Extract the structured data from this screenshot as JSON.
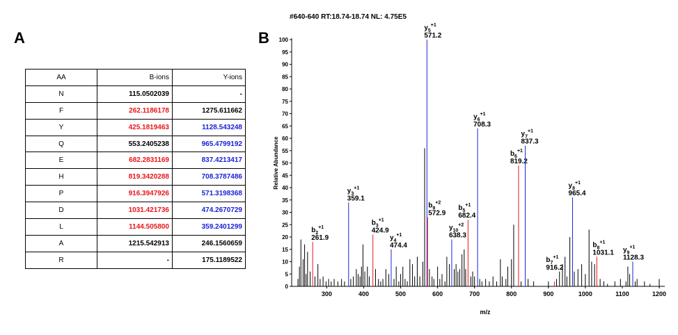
{
  "header": "#640-640 RT:18.74-18.74 NL: 4.75E5",
  "panel_a": {
    "letter": "A",
    "columns": [
      "AA",
      "B-ions",
      "Y-ions"
    ],
    "rows": [
      {
        "aa": "N",
        "b": "115.0502039",
        "y": "-",
        "b_color": "black",
        "y_color": "black"
      },
      {
        "aa": "F",
        "b": "262.1186178",
        "y": "1275.611662",
        "b_color": "red",
        "y_color": "black"
      },
      {
        "aa": "Y",
        "b": "425.1819463",
        "y": "1128.543248",
        "b_color": "red",
        "y_color": "blue"
      },
      {
        "aa": "Q",
        "b": "553.2405238",
        "y": "965.4799192",
        "b_color": "black",
        "y_color": "blue"
      },
      {
        "aa": "E",
        "b": "682.2831169",
        "y": "837.4213417",
        "b_color": "red",
        "y_color": "blue"
      },
      {
        "aa": "H",
        "b": "819.3420288",
        "y": "708.3787486",
        "b_color": "red",
        "y_color": "blue"
      },
      {
        "aa": "P",
        "b": "916.3947926",
        "y": "571.3198368",
        "b_color": "red",
        "y_color": "blue"
      },
      {
        "aa": "D",
        "b": "1031.421736",
        "y": "474.2670729",
        "b_color": "red",
        "y_color": "blue"
      },
      {
        "aa": "L",
        "b": "1144.505800",
        "y": "359.2401299",
        "b_color": "red",
        "y_color": "blue"
      },
      {
        "aa": "A",
        "b": "1215.542913",
        "y": "246.1560659",
        "b_color": "black",
        "y_color": "black"
      },
      {
        "aa": "R",
        "b": "-",
        "y": "175.1189522",
        "b_color": "black",
        "y_color": "black"
      }
    ]
  },
  "panel_b": {
    "letter": "B",
    "colors": {
      "b_ion": "#e8161b",
      "y_ion": "#1a22d6",
      "other": "#000000"
    }
  },
  "chart_data": {
    "type": "bar",
    "xlabel": "m/z",
    "ylabel": "Relative Abundance",
    "xlim": [
      205,
      1215
    ],
    "ylim": [
      0,
      100
    ],
    "xticks": [
      300,
      400,
      500,
      600,
      700,
      800,
      900,
      1000,
      1100,
      1200
    ],
    "yticks": [
      0,
      5,
      10,
      15,
      20,
      25,
      30,
      35,
      40,
      45,
      50,
      55,
      60,
      65,
      70,
      75,
      80,
      85,
      90,
      95,
      100
    ],
    "annotated_peaks": [
      {
        "mz": 261.9,
        "intensity": 18,
        "ion": "b",
        "num": "2",
        "charge": "+1",
        "label": "261.9"
      },
      {
        "mz": 359.1,
        "intensity": 34,
        "ion": "y",
        "num": "3",
        "charge": "+1",
        "label": "359.1"
      },
      {
        "mz": 424.9,
        "intensity": 21,
        "ion": "b",
        "num": "3",
        "charge": "+1",
        "label": "424.9"
      },
      {
        "mz": 474.4,
        "intensity": 15,
        "ion": "y",
        "num": "4",
        "charge": "+1",
        "label": "474.4"
      },
      {
        "mz": 571.2,
        "intensity": 100,
        "ion": "y",
        "num": "5",
        "charge": "+1",
        "label": "571.2"
      },
      {
        "mz": 572.9,
        "intensity": 28,
        "ion": "b",
        "num": "9",
        "charge": "+2",
        "label": "572.9"
      },
      {
        "mz": 638.3,
        "intensity": 19,
        "ion": "y",
        "num": "10",
        "charge": "+2",
        "label": "638.3"
      },
      {
        "mz": 682.4,
        "intensity": 27,
        "ion": "b",
        "num": "5",
        "charge": "+1",
        "label": "682.4"
      },
      {
        "mz": 708.3,
        "intensity": 64,
        "ion": "y",
        "num": "6",
        "charge": "+1",
        "label": "708.3"
      },
      {
        "mz": 819.2,
        "intensity": 49,
        "ion": "b",
        "num": "6",
        "charge": "+1",
        "label": "819.2"
      },
      {
        "mz": 837.3,
        "intensity": 57,
        "ion": "y",
        "num": "7",
        "charge": "+1",
        "label": "837.3"
      },
      {
        "mz": 916.2,
        "intensity": 2,
        "ion": "b",
        "num": "7",
        "charge": "+1",
        "label": "916.2"
      },
      {
        "mz": 965.4,
        "intensity": 36,
        "ion": "y",
        "num": "8",
        "charge": "+1",
        "label": "965.4"
      },
      {
        "mz": 1031.1,
        "intensity": 12,
        "ion": "b",
        "num": "8",
        "charge": "+1",
        "label": "1031.1"
      },
      {
        "mz": 1128.3,
        "intensity": 10,
        "ion": "y",
        "num": "9",
        "charge": "+1",
        "label": "1128.3"
      }
    ],
    "other_peaks": [
      {
        "mz": 222,
        "intensity": 3
      },
      {
        "mz": 226,
        "intensity": 8
      },
      {
        "mz": 230,
        "intensity": 19
      },
      {
        "mz": 236,
        "intensity": 11
      },
      {
        "mz": 240,
        "intensity": 17
      },
      {
        "mz": 244,
        "intensity": 5
      },
      {
        "mz": 248,
        "intensity": 14
      },
      {
        "mz": 255,
        "intensity": 6
      },
      {
        "mz": 268,
        "intensity": 4
      },
      {
        "mz": 276,
        "intensity": 9
      },
      {
        "mz": 282,
        "intensity": 3
      },
      {
        "mz": 290,
        "intensity": 4
      },
      {
        "mz": 298,
        "intensity": 2
      },
      {
        "mz": 305,
        "intensity": 3
      },
      {
        "mz": 312,
        "intensity": 2
      },
      {
        "mz": 320,
        "intensity": 3
      },
      {
        "mz": 330,
        "intensity": 2
      },
      {
        "mz": 340,
        "intensity": 3
      },
      {
        "mz": 348,
        "intensity": 2
      },
      {
        "mz": 365,
        "intensity": 3
      },
      {
        "mz": 372,
        "intensity": 4
      },
      {
        "mz": 380,
        "intensity": 7
      },
      {
        "mz": 385,
        "intensity": 5
      },
      {
        "mz": 390,
        "intensity": 4
      },
      {
        "mz": 394,
        "intensity": 8
      },
      {
        "mz": 398,
        "intensity": 17
      },
      {
        "mz": 403,
        "intensity": 6
      },
      {
        "mz": 410,
        "intensity": 8
      },
      {
        "mz": 415,
        "intensity": 4
      },
      {
        "mz": 432,
        "intensity": 7
      },
      {
        "mz": 440,
        "intensity": 3
      },
      {
        "mz": 446,
        "intensity": 2
      },
      {
        "mz": 452,
        "intensity": 3
      },
      {
        "mz": 460,
        "intensity": 7
      },
      {
        "mz": 468,
        "intensity": 5
      },
      {
        "mz": 482,
        "intensity": 3
      },
      {
        "mz": 488,
        "intensity": 8
      },
      {
        "mz": 495,
        "intensity": 2
      },
      {
        "mz": 500,
        "intensity": 5
      },
      {
        "mz": 506,
        "intensity": 8
      },
      {
        "mz": 512,
        "intensity": 3
      },
      {
        "mz": 518,
        "intensity": 2
      },
      {
        "mz": 525,
        "intensity": 11
      },
      {
        "mz": 532,
        "intensity": 9
      },
      {
        "mz": 538,
        "intensity": 4
      },
      {
        "mz": 545,
        "intensity": 12
      },
      {
        "mz": 552,
        "intensity": 4
      },
      {
        "mz": 560,
        "intensity": 10
      },
      {
        "mz": 565,
        "intensity": 56
      },
      {
        "mz": 578,
        "intensity": 7
      },
      {
        "mz": 585,
        "intensity": 4
      },
      {
        "mz": 590,
        "intensity": 3
      },
      {
        "mz": 600,
        "intensity": 8
      },
      {
        "mz": 606,
        "intensity": 3
      },
      {
        "mz": 612,
        "intensity": 5
      },
      {
        "mz": 620,
        "intensity": 2
      },
      {
        "mz": 625,
        "intensity": 12
      },
      {
        "mz": 632,
        "intensity": 9
      },
      {
        "mz": 645,
        "intensity": 7
      },
      {
        "mz": 650,
        "intensity": 9
      },
      {
        "mz": 655,
        "intensity": 6
      },
      {
        "mz": 660,
        "intensity": 7
      },
      {
        "mz": 666,
        "intensity": 13
      },
      {
        "mz": 672,
        "intensity": 15
      },
      {
        "mz": 676,
        "intensity": 7
      },
      {
        "mz": 690,
        "intensity": 4
      },
      {
        "mz": 695,
        "intensity": 6
      },
      {
        "mz": 700,
        "intensity": 4
      },
      {
        "mz": 714,
        "intensity": 3
      },
      {
        "mz": 720,
        "intensity": 2
      },
      {
        "mz": 730,
        "intensity": 3
      },
      {
        "mz": 740,
        "intensity": 2
      },
      {
        "mz": 750,
        "intensity": 4
      },
      {
        "mz": 760,
        "intensity": 2
      },
      {
        "mz": 770,
        "intensity": 11
      },
      {
        "mz": 775,
        "intensity": 4
      },
      {
        "mz": 785,
        "intensity": 3
      },
      {
        "mz": 790,
        "intensity": 8
      },
      {
        "mz": 800,
        "intensity": 11
      },
      {
        "mz": 806,
        "intensity": 25
      },
      {
        "mz": 826,
        "intensity": 2
      },
      {
        "mz": 845,
        "intensity": 3
      },
      {
        "mz": 860,
        "intensity": 2
      },
      {
        "mz": 900,
        "intensity": 2
      },
      {
        "mz": 922,
        "intensity": 3
      },
      {
        "mz": 930,
        "intensity": 6
      },
      {
        "mz": 938,
        "intensity": 9
      },
      {
        "mz": 945,
        "intensity": 12
      },
      {
        "mz": 950,
        "intensity": 4
      },
      {
        "mz": 958,
        "intensity": 20
      },
      {
        "mz": 970,
        "intensity": 6
      },
      {
        "mz": 980,
        "intensity": 7
      },
      {
        "mz": 990,
        "intensity": 9
      },
      {
        "mz": 1000,
        "intensity": 5
      },
      {
        "mz": 1010,
        "intensity": 23
      },
      {
        "mz": 1017,
        "intensity": 10
      },
      {
        "mz": 1025,
        "intensity": 9
      },
      {
        "mz": 1040,
        "intensity": 3
      },
      {
        "mz": 1050,
        "intensity": 2
      },
      {
        "mz": 1060,
        "intensity": 1
      },
      {
        "mz": 1080,
        "intensity": 2
      },
      {
        "mz": 1095,
        "intensity": 3
      },
      {
        "mz": 1110,
        "intensity": 2
      },
      {
        "mz": 1115,
        "intensity": 8
      },
      {
        "mz": 1120,
        "intensity": 5
      },
      {
        "mz": 1135,
        "intensity": 2
      },
      {
        "mz": 1140,
        "intensity": 3
      },
      {
        "mz": 1160,
        "intensity": 2
      },
      {
        "mz": 1175,
        "intensity": 1
      },
      {
        "mz": 1200,
        "intensity": 3
      }
    ]
  }
}
